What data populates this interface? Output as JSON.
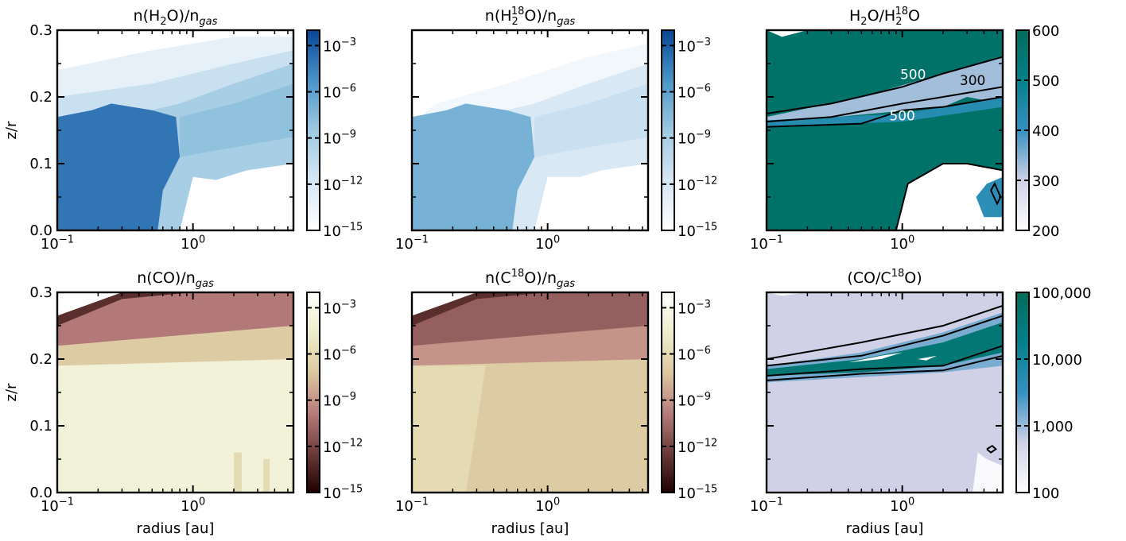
{
  "chart_data": [
    {
      "type": "heatmap",
      "title_parts": [
        "n(H",
        "2",
        "O)/n",
        "gas"
      ],
      "xlabel": "",
      "ylabel": "z/r",
      "xscale": "log",
      "xlim": [
        0.1,
        5.5
      ],
      "ylim": [
        0.0,
        0.3
      ],
      "x_ticks": [
        {
          "base": "10",
          "exp": "−1"
        },
        {
          "base": "10",
          "exp": "0"
        }
      ],
      "y_ticks": [
        "0.0",
        "0.1",
        "0.2",
        "0.3"
      ],
      "colorbar": {
        "scale": "log",
        "range": [
          1e-15,
          0.01
        ],
        "ticks": [
          {
            "base": "10",
            "exp": "−3"
          },
          {
            "base": "10",
            "exp": "−6"
          },
          {
            "base": "10",
            "exp": "−9"
          },
          {
            "base": "10",
            "exp": "−12"
          },
          {
            "base": "10",
            "exp": "−15"
          }
        ],
        "colormap": "Blues",
        "colors": [
          "#ffffff",
          "#d6e6f4",
          "#9ecae1",
          "#4a93c8",
          "#084594"
        ]
      },
      "regions": [
        {
          "z_r_range": [
            0.0,
            0.18
          ],
          "radius_range": [
            0.1,
            0.8
          ],
          "value": 0.0001
        },
        {
          "z_r_range": [
            0.11,
            0.17
          ],
          "radius_range": [
            0.8,
            5.5
          ],
          "value": 1e-08
        },
        {
          "z_r_range": [
            0.0,
            0.07
          ],
          "radius_range": [
            1.0,
            5.5
          ],
          "value": 1e-15
        },
        {
          "z_r_range": [
            0.18,
            0.28
          ],
          "radius_range": [
            0.1,
            5.5
          ],
          "value": 1e-11
        }
      ]
    },
    {
      "type": "heatmap",
      "title_parts": [
        "n(H",
        "2",
        "18",
        "O)/n",
        "gas"
      ],
      "xlabel": "",
      "ylabel": "",
      "xscale": "log",
      "xlim": [
        0.1,
        5.5
      ],
      "ylim": [
        0.0,
        0.3
      ],
      "x_ticks": [
        {
          "base": "10",
          "exp": "−1"
        },
        {
          "base": "10",
          "exp": "0"
        }
      ],
      "y_ticks": [],
      "colorbar": {
        "scale": "log",
        "range": [
          1e-15,
          0.01
        ],
        "ticks": [
          {
            "base": "10",
            "exp": "−3"
          },
          {
            "base": "10",
            "exp": "−6"
          },
          {
            "base": "10",
            "exp": "−9"
          },
          {
            "base": "10",
            "exp": "−12"
          },
          {
            "base": "10",
            "exp": "−15"
          }
        ],
        "colormap": "Blues",
        "colors": [
          "#ffffff",
          "#d6e6f4",
          "#9ecae1",
          "#4a93c8",
          "#084594"
        ]
      },
      "regions": [
        {
          "z_r_range": [
            0.0,
            0.18
          ],
          "radius_range": [
            0.1,
            0.8
          ],
          "value": 1e-07
        },
        {
          "z_r_range": [
            0.11,
            0.17
          ],
          "radius_range": [
            0.8,
            5.5
          ],
          "value": 1e-10
        },
        {
          "z_r_range": [
            0.0,
            0.07
          ],
          "radius_range": [
            1.0,
            5.5
          ],
          "value": 1e-15
        }
      ]
    },
    {
      "type": "heatmap",
      "title_parts": [
        "H",
        "2",
        "O/H",
        "2",
        "18",
        "O"
      ],
      "xlabel": "",
      "ylabel": "",
      "xscale": "log",
      "xlim": [
        0.1,
        5.5
      ],
      "ylim": [
        0.0,
        0.3
      ],
      "x_ticks": [
        {
          "base": "10",
          "exp": "−1"
        },
        {
          "base": "10",
          "exp": "0"
        }
      ],
      "y_ticks": [],
      "colorbar": {
        "scale": "linear",
        "range": [
          200,
          600
        ],
        "ticks": [
          "600",
          "500",
          "400",
          "300",
          "200"
        ],
        "colormap": "PuBuGn",
        "colors": [
          "#ffffff",
          "#d0d1e6",
          "#3690c0",
          "#02818a",
          "#016c59"
        ]
      },
      "contour_labels": [
        "500",
        "300",
        "500"
      ],
      "regions": [
        {
          "z_r_range": [
            0.17,
            0.26
          ],
          "radius_range": [
            0.1,
            5.5
          ],
          "value": 300
        },
        {
          "z_r_range": [
            0.0,
            0.1
          ],
          "radius_range": [
            0.9,
            5.5
          ],
          "value": 200
        },
        {
          "z_r_range": [
            0.0,
            0.3
          ],
          "radius_range": [
            0.1,
            5.5
          ],
          "value": 560
        }
      ]
    },
    {
      "type": "heatmap",
      "title_parts": [
        "n(CO)/n",
        "gas"
      ],
      "xlabel": "radius [au]",
      "ylabel": "z/r",
      "xscale": "log",
      "xlim": [
        0.1,
        5.5
      ],
      "ylim": [
        0.0,
        0.3
      ],
      "x_ticks": [
        {
          "base": "10",
          "exp": "−1"
        },
        {
          "base": "10",
          "exp": "0"
        }
      ],
      "y_ticks": [
        "0.0",
        "0.1",
        "0.2",
        "0.3"
      ],
      "colorbar": {
        "scale": "log",
        "range": [
          1e-15,
          0.01
        ],
        "ticks": [
          {
            "base": "10",
            "exp": "−3"
          },
          {
            "base": "10",
            "exp": "−6"
          },
          {
            "base": "10",
            "exp": "−9"
          },
          {
            "base": "10",
            "exp": "−12"
          },
          {
            "base": "10",
            "exp": "−15"
          }
        ],
        "colormap": "pink",
        "colors": [
          "#1e0000",
          "#6d3c3c",
          "#b97d7d",
          "#dcc8a0",
          "#eeeecc",
          "#ffffff"
        ]
      },
      "regions": [
        {
          "z_r_range": [
            0.0,
            0.19
          ],
          "radius_range": [
            0.1,
            5.5
          ],
          "value": 0.0001
        },
        {
          "z_r_range": [
            0.19,
            0.26
          ],
          "radius_range": [
            0.1,
            5.5
          ],
          "value": 1e-09
        },
        {
          "z_r_range": [
            0.26,
            0.3
          ],
          "radius_range": [
            0.1,
            0.3
          ],
          "value": 1e-14
        }
      ]
    },
    {
      "type": "heatmap",
      "title_parts": [
        "n(C",
        "18",
        "O)/n",
        "gas"
      ],
      "xlabel": "radius [au]",
      "ylabel": "",
      "xscale": "log",
      "xlim": [
        0.1,
        5.5
      ],
      "ylim": [
        0.0,
        0.3
      ],
      "x_ticks": [
        {
          "base": "10",
          "exp": "−1"
        },
        {
          "base": "10",
          "exp": "0"
        }
      ],
      "y_ticks": [],
      "colorbar": {
        "scale": "log",
        "range": [
          1e-15,
          0.01
        ],
        "ticks": [
          {
            "base": "10",
            "exp": "−3"
          },
          {
            "base": "10",
            "exp": "−6"
          },
          {
            "base": "10",
            "exp": "−9"
          },
          {
            "base": "10",
            "exp": "−12"
          },
          {
            "base": "10",
            "exp": "−15"
          }
        ],
        "colormap": "pink",
        "colors": [
          "#1e0000",
          "#6d3c3c",
          "#b97d7d",
          "#dcc8a0",
          "#eeeecc",
          "#ffffff"
        ]
      },
      "regions": [
        {
          "z_r_range": [
            0.0,
            0.19
          ],
          "radius_range": [
            0.1,
            5.5
          ],
          "value": 1e-07
        },
        {
          "z_r_range": [
            0.19,
            0.26
          ],
          "radius_range": [
            0.1,
            5.5
          ],
          "value": 1e-11
        },
        {
          "z_r_range": [
            0.26,
            0.3
          ],
          "radius_range": [
            0.1,
            0.3
          ],
          "value": 1e-14
        }
      ]
    },
    {
      "type": "heatmap",
      "title_parts": [
        "(CO/C",
        "18",
        "O)"
      ],
      "xlabel": "radius [au]",
      "ylabel": "",
      "xscale": "log",
      "xlim": [
        0.1,
        5.5
      ],
      "ylim": [
        0.0,
        0.3
      ],
      "x_ticks": [
        {
          "base": "10",
          "exp": "−1"
        },
        {
          "base": "10",
          "exp": "0"
        }
      ],
      "y_ticks": [],
      "colorbar": {
        "scale": "log",
        "range": [
          100,
          100000
        ],
        "ticks": [
          "100,000",
          "10,000",
          "1,000",
          "100"
        ],
        "colormap": "PuBuGn",
        "colors": [
          "#ffffff",
          "#d0d1e6",
          "#3690c0",
          "#02818a",
          "#016c59"
        ]
      },
      "regions": [
        {
          "z_r_range": [
            0.0,
            0.3
          ],
          "radius_range": [
            0.1,
            5.5
          ],
          "value": 560
        },
        {
          "z_r_range": [
            0.17,
            0.24
          ],
          "radius_range": [
            0.1,
            5.5
          ],
          "value": 10000
        }
      ]
    }
  ]
}
